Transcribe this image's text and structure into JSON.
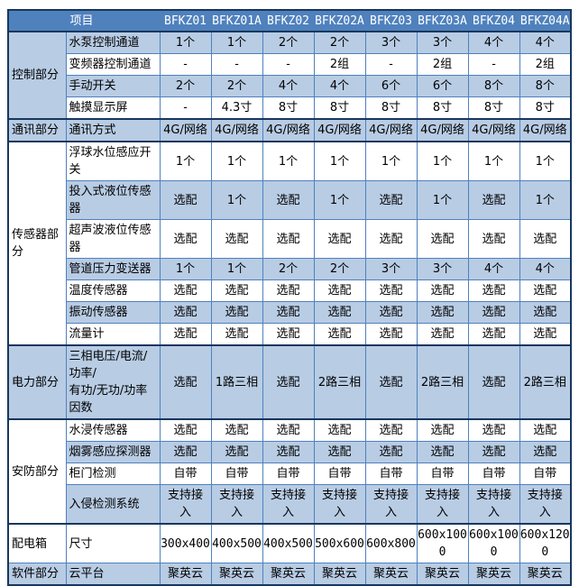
{
  "colors": {
    "header_bg": "#4F81BD",
    "header_text": "#FFFFFF",
    "stripe_blue": "#B8CCE4",
    "row_white": "#FFFFFF",
    "grid_line": "#4F81BD",
    "section_line": "#17375E",
    "text": "#000000"
  },
  "header": {
    "item_label": "项目",
    "models": [
      "BFKZ01",
      "BFKZ01A",
      "BFKZ02",
      "BFKZ02A",
      "BFKZ03",
      "BFKZ03A",
      "BFKZ04",
      "BFKZ04A"
    ]
  },
  "sections": [
    {
      "name": "控制部分",
      "rows": [
        {
          "item": "水泵控制通道",
          "values": [
            "1个",
            "1个",
            "2个",
            "2个",
            "3个",
            "3个",
            "4个",
            "4个"
          ]
        },
        {
          "item": "变频器控制通道",
          "values": [
            "-",
            "-",
            "-",
            "2组",
            "-",
            "2组",
            "-",
            "2组"
          ]
        },
        {
          "item": "手动开关",
          "values": [
            "2个",
            "2个",
            "4个",
            "4个",
            "6个",
            "6个",
            "8个",
            "8个"
          ]
        },
        {
          "item": "触摸显示屏",
          "values": [
            "-",
            "4.3寸",
            "8寸",
            "8寸",
            "8寸",
            "8寸",
            "8寸",
            "8寸"
          ]
        }
      ]
    },
    {
      "name": "通讯部分",
      "rows": [
        {
          "item": "通讯方式",
          "values": [
            "4G/网络",
            "4G/网络",
            "4G/网络",
            "4G/网络",
            "4G/网络",
            "4G/网络",
            "4G/网络",
            "4G/网络"
          ]
        }
      ]
    },
    {
      "name": "传感器部分",
      "rows": [
        {
          "item": "浮球水位感应开\n关",
          "values": [
            "1个",
            "1个",
            "1个",
            "1个",
            "1个",
            "1个",
            "1个",
            "1个"
          ]
        },
        {
          "item": "投入式液位传感\n器",
          "values": [
            "选配",
            "1个",
            "选配",
            "1个",
            "选配",
            "1个",
            "选配",
            "1个"
          ]
        },
        {
          "item": "超声波液位传感\n器",
          "values": [
            "选配",
            "选配",
            "选配",
            "选配",
            "选配",
            "选配",
            "选配",
            "选配"
          ]
        },
        {
          "item": "管道压力变送器",
          "values": [
            "1个",
            "1个",
            "2个",
            "2个",
            "3个",
            "3个",
            "4个",
            "4个"
          ]
        },
        {
          "item": "温度传感器",
          "values": [
            "选配",
            "选配",
            "选配",
            "选配",
            "选配",
            "选配",
            "选配",
            "选配"
          ]
        },
        {
          "item": "振动传感器",
          "values": [
            "选配",
            "选配",
            "选配",
            "选配",
            "选配",
            "选配",
            "选配",
            "选配"
          ]
        },
        {
          "item": "流量计",
          "values": [
            "选配",
            "选配",
            "选配",
            "选配",
            "选配",
            "选配",
            "选配",
            "选配"
          ]
        }
      ]
    },
    {
      "name": "电力部分",
      "rows": [
        {
          "item": "三相电压/电流/\n功率/\n有功/无功/功率\n因数",
          "values": [
            "选配",
            "1路三相",
            "选配",
            "2路三相",
            "选配",
            "2路三相",
            "选配",
            "2路三相"
          ]
        }
      ]
    },
    {
      "name": "安防部分",
      "rows": [
        {
          "item": "水浸传感器",
          "values": [
            "选配",
            "选配",
            "选配",
            "选配",
            "选配",
            "选配",
            "选配",
            "选配"
          ]
        },
        {
          "item": "烟雾感应探测器",
          "values": [
            "选配",
            "选配",
            "选配",
            "选配",
            "选配",
            "选配",
            "选配",
            "选配"
          ]
        },
        {
          "item": "柜门检测",
          "values": [
            "自带",
            "自带",
            "自带",
            "自带",
            "自带",
            "自带",
            "自带",
            "自带"
          ]
        },
        {
          "item": "入侵检测系统",
          "values": [
            "支持接\n入",
            "支持接\n入",
            "支持接\n入",
            "支持接\n入",
            "支持接\n入",
            "支持接\n入",
            "支持接\n入",
            "支持接\n入"
          ]
        }
      ]
    },
    {
      "name": "配电箱",
      "rows": [
        {
          "item": "尺寸",
          "values": [
            "300x400",
            "400x500",
            "400x500",
            "500x600",
            "600x800",
            "600x100\n0",
            "600x100\n0",
            "600x120\n0"
          ]
        }
      ]
    },
    {
      "name": "软件部分",
      "rows": [
        {
          "item": "云平台",
          "values": [
            "聚英云",
            "聚英云",
            "聚英云",
            "聚英云",
            "聚英云",
            "聚英云",
            "聚英云",
            "聚英云"
          ]
        }
      ]
    }
  ]
}
